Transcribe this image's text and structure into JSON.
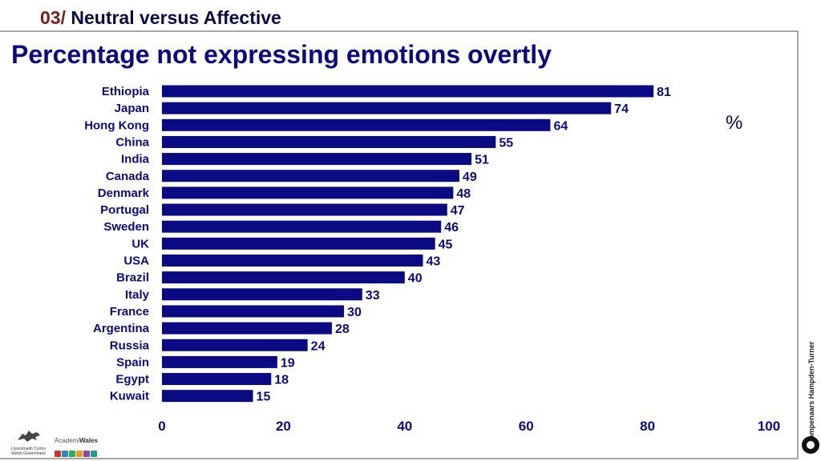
{
  "header": {
    "section_number": "03/",
    "section_title": "Neutral versus Affective"
  },
  "unit_label": "%",
  "side_brand": "Trompenaars Hampden-Turner",
  "footer": {
    "welsh_gov_text": "Llywodraeth Cymru Welsh Government",
    "academi_prefix": "Academi",
    "academi_suffix": "Wales"
  },
  "colors": {
    "bar": "#0a0a82",
    "title": "#0a0a82",
    "header_number": "#7a1d1d",
    "frame": "#a6a6a6"
  },
  "chart_data": {
    "type": "bar",
    "orientation": "horizontal",
    "title": "Percentage not expressing emotions overtly",
    "xlabel": "",
    "ylabel": "",
    "categories": [
      "Ethiopia",
      "Japan",
      "Hong Kong",
      "China",
      "India",
      "Canada",
      "Denmark",
      "Portugal",
      "Sweden",
      "UK",
      "USA",
      "Brazil",
      "Italy",
      "France",
      "Argentina",
      "Russia",
      "Spain",
      "Egypt",
      "Kuwait"
    ],
    "values": [
      81,
      74,
      64,
      55,
      51,
      49,
      48,
      47,
      46,
      45,
      43,
      40,
      33,
      30,
      28,
      24,
      19,
      18,
      15
    ],
    "xlim": [
      0,
      100
    ],
    "xticks": [
      0,
      20,
      40,
      60,
      80,
      100
    ],
    "data_labels": true,
    "grid": false,
    "legend": "none"
  }
}
